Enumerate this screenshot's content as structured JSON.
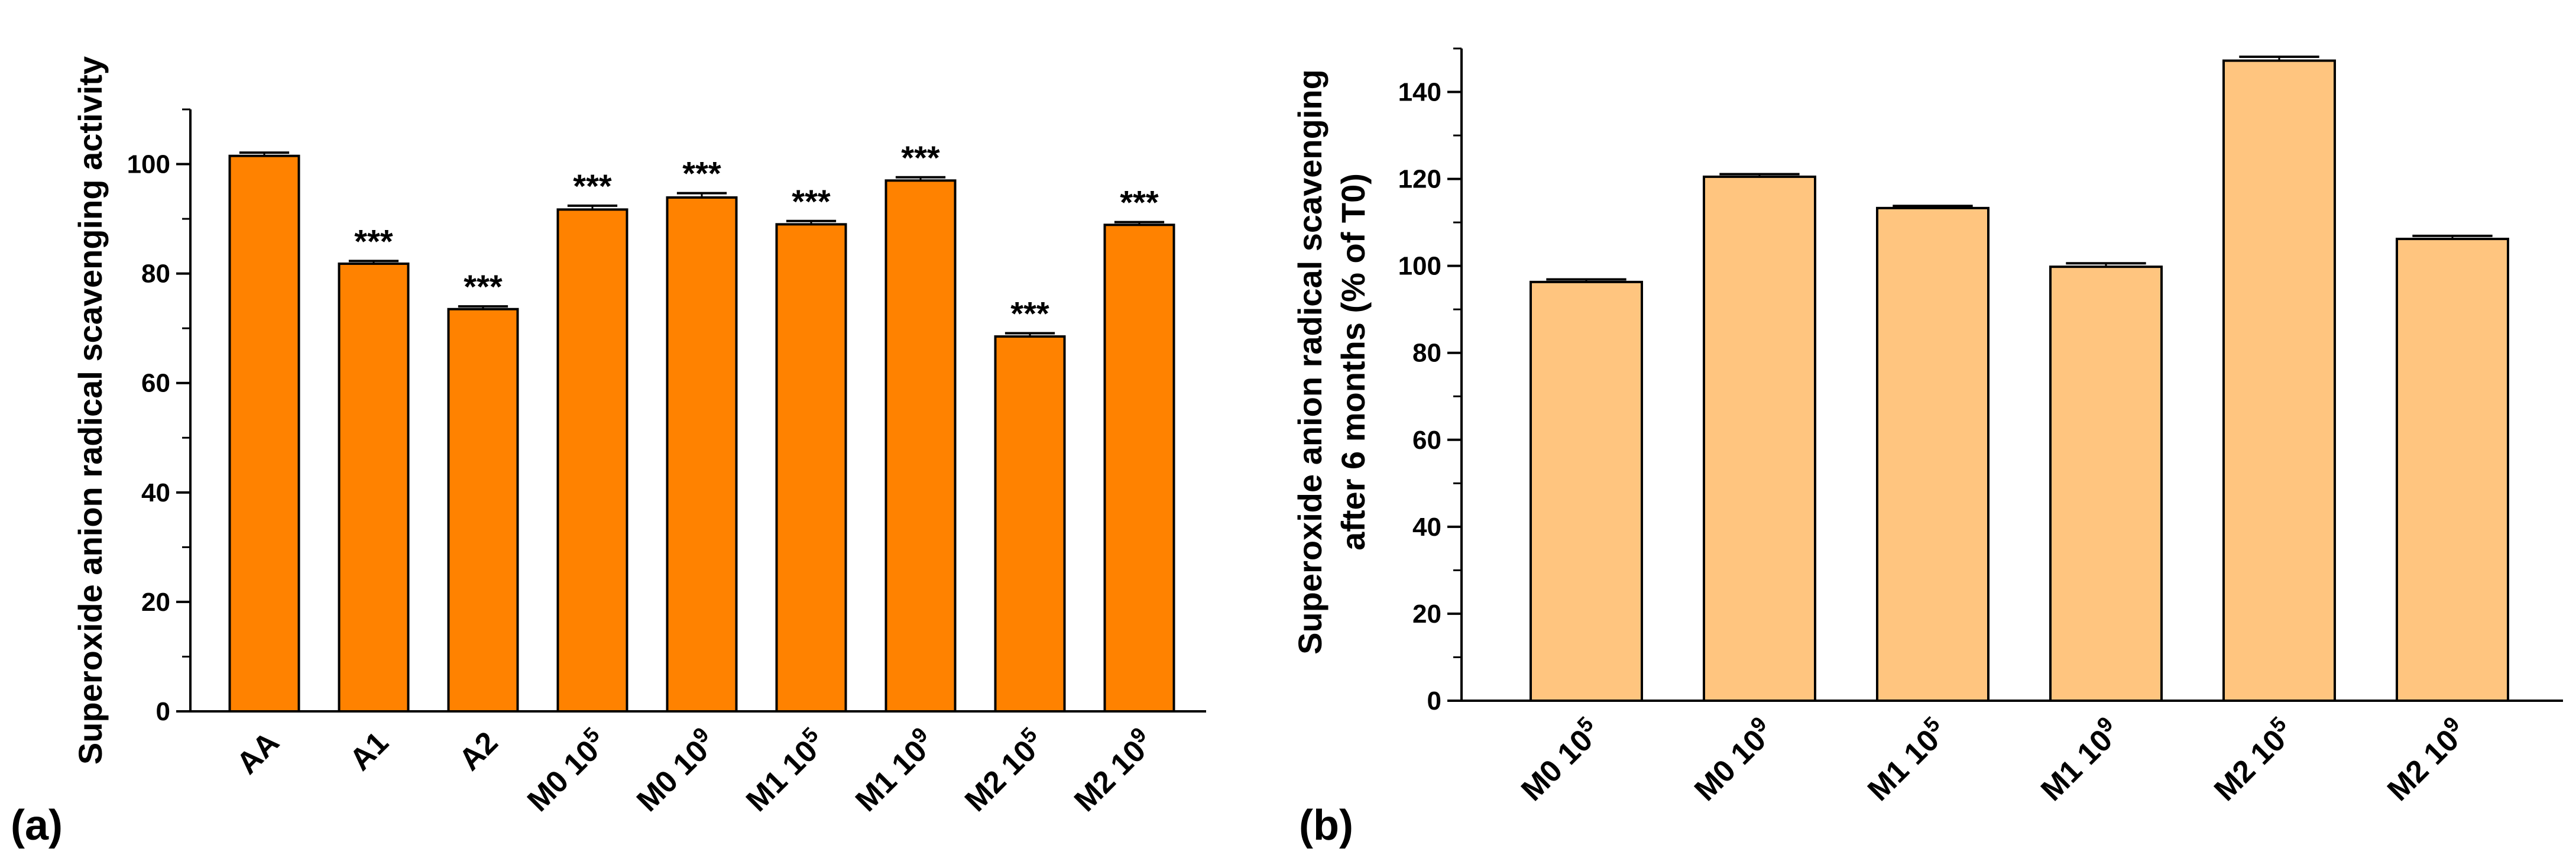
{
  "chart_data": [
    {
      "panel": "(a)",
      "type": "bar",
      "color": "#FF8200",
      "ylabel": "Superoxide anion radical scavenging activity",
      "ylim": [
        0,
        110
      ],
      "yticks": [
        0,
        20,
        40,
        60,
        80,
        100
      ],
      "ytick_labels": [
        "0",
        "20",
        "40",
        "60",
        "80",
        "100"
      ],
      "categories": [
        {
          "base": "AA",
          "exp": ""
        },
        {
          "base": "A1",
          "exp": ""
        },
        {
          "base": "A2",
          "exp": ""
        },
        {
          "base": "M0 10",
          "exp": "5"
        },
        {
          "base": "M0 10",
          "exp": "9"
        },
        {
          "base": "M1 10",
          "exp": "5"
        },
        {
          "base": "M1 10",
          "exp": "9"
        },
        {
          "base": "M2 10",
          "exp": "5"
        },
        {
          "base": "M2 10",
          "exp": "9"
        }
      ],
      "values": [
        101.5,
        81.8,
        73.5,
        91.7,
        93.9,
        89.0,
        97.0,
        68.5,
        88.9
      ],
      "errors": [
        0.6,
        0.5,
        0.5,
        0.7,
        0.8,
        0.6,
        0.6,
        0.6,
        0.5
      ],
      "significance": [
        "",
        "***",
        "***",
        "***",
        "***",
        "***",
        "***",
        "***",
        "***"
      ]
    },
    {
      "panel": "(b)",
      "type": "bar",
      "color": "#FFC57F",
      "ylabel": "Superoxide anion radical scavenging",
      "ylabel2": "after 6 months (% of T0)",
      "ylim": [
        0,
        150
      ],
      "yticks": [
        0,
        20,
        40,
        60,
        80,
        100,
        120,
        140
      ],
      "ytick_labels": [
        "0",
        "20",
        "40",
        "60",
        "80",
        "100",
        "120",
        "140"
      ],
      "categories": [
        {
          "base": "M0 10",
          "exp": "5"
        },
        {
          "base": "M0 10",
          "exp": "9"
        },
        {
          "base": "M1 10",
          "exp": "5"
        },
        {
          "base": "M1 10",
          "exp": "9"
        },
        {
          "base": "M2 10",
          "exp": "5"
        },
        {
          "base": "M2 10",
          "exp": "9"
        }
      ],
      "values": [
        96.3,
        120.5,
        113.3,
        99.8,
        147.2,
        106.2
      ],
      "errors": [
        0.6,
        0.6,
        0.5,
        0.8,
        0.9,
        0.7
      ],
      "significance": [
        "",
        "",
        "",
        "",
        "",
        ""
      ]
    }
  ]
}
